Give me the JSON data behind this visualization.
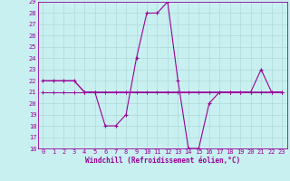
{
  "title": "",
  "xlabel": "Windchill (Refroidissement éolien,°C)",
  "ylabel": "",
  "bg_color": "#c8f0f0",
  "line_color": "#990099",
  "grid_color": "#b0d8d8",
  "xlim": [
    -0.5,
    23.5
  ],
  "ylim": [
    16,
    29
  ],
  "yticks": [
    16,
    17,
    18,
    19,
    20,
    21,
    22,
    23,
    24,
    25,
    26,
    27,
    28,
    29
  ],
  "xticks": [
    0,
    1,
    2,
    3,
    4,
    5,
    6,
    7,
    8,
    9,
    10,
    11,
    12,
    13,
    14,
    15,
    16,
    17,
    18,
    19,
    20,
    21,
    22,
    23
  ],
  "series1_x": [
    0,
    1,
    2,
    3,
    4,
    5,
    6,
    7,
    8,
    9,
    10,
    11,
    12,
    13,
    14,
    15,
    16,
    17,
    18,
    19,
    20,
    21,
    22,
    23
  ],
  "series1_y": [
    22,
    22,
    22,
    22,
    21,
    21,
    18,
    18,
    19,
    24,
    28,
    28,
    29,
    22,
    16,
    16,
    20,
    21,
    21,
    21,
    21,
    23,
    21,
    21
  ],
  "series2_x": [
    0,
    1,
    2,
    3,
    4,
    5,
    6,
    7,
    8,
    9,
    10,
    11,
    12,
    13,
    14,
    15,
    16,
    17,
    18,
    19,
    20,
    21,
    22,
    23
  ],
  "series2_y": [
    21,
    21,
    21,
    21,
    21,
    21,
    21,
    21,
    21,
    21,
    21,
    21,
    21,
    21,
    21,
    21,
    21,
    21,
    21,
    21,
    21,
    21,
    21,
    21
  ],
  "series3_x": [
    0,
    23
  ],
  "series3_y": [
    21,
    21
  ],
  "series4_x": [
    0,
    1,
    2,
    3,
    4,
    5,
    6,
    7,
    8,
    9,
    10,
    11,
    12,
    13,
    14,
    15,
    16,
    17,
    18,
    19,
    20,
    21,
    22,
    23
  ],
  "series4_y": [
    22,
    22,
    22,
    22,
    21,
    21,
    21,
    21,
    21,
    21,
    21,
    21,
    21,
    21,
    21,
    21,
    21,
    21,
    21,
    21,
    21,
    21,
    21,
    21
  ]
}
